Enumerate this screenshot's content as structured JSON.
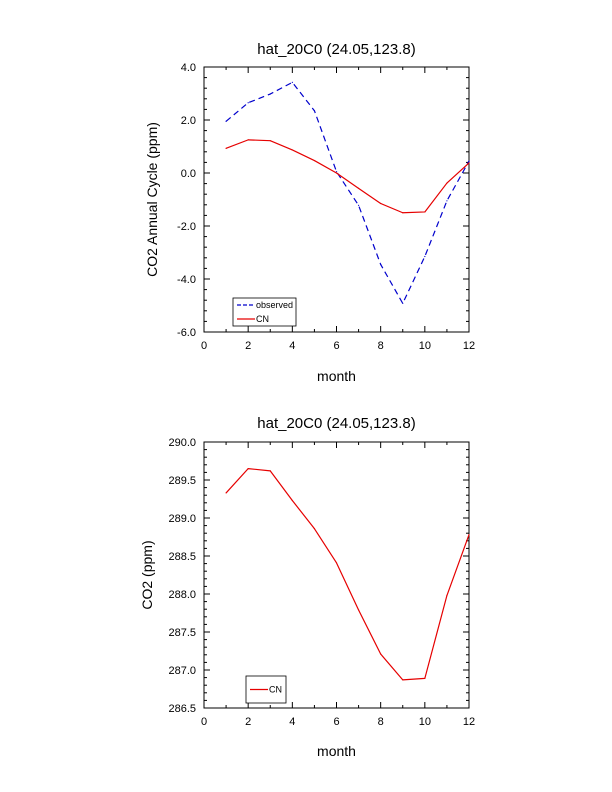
{
  "chart_data": [
    {
      "type": "line",
      "title": "hat_20C0 (24.05,123.8)",
      "xlabel": "month",
      "ylabel": "CO2 Annual Cycle (ppm)",
      "xlim": [
        0,
        12
      ],
      "ylim": [
        -6.0,
        4.0
      ],
      "xticks": [
        0,
        2,
        4,
        6,
        8,
        10,
        12
      ],
      "yticks": [
        -6.0,
        -4.0,
        -2.0,
        0.0,
        2.0,
        4.0
      ],
      "ytick_labels": [
        "-6.0",
        "-4.0",
        "-2.0",
        "0.0",
        "2.0",
        "4.0"
      ],
      "grid": false,
      "legend_position": "bottom-left",
      "x": [
        1,
        2,
        3,
        4,
        5,
        6,
        7,
        8,
        9,
        10,
        11,
        12
      ],
      "series": [
        {
          "name": "observed",
          "color": "#0000cc",
          "dash": "dashed",
          "values": [
            1.95,
            2.65,
            2.98,
            3.42,
            2.35,
            0.05,
            -1.22,
            -3.45,
            -4.92,
            -3.15,
            -1.05,
            0.45
          ]
        },
        {
          "name": "CN",
          "color": "#e60000",
          "dash": "solid",
          "values": [
            0.93,
            1.25,
            1.22,
            0.87,
            0.47,
            0.0,
            -0.58,
            -1.15,
            -1.5,
            -1.47,
            -0.38,
            0.38
          ]
        }
      ]
    },
    {
      "type": "line",
      "title": "hat_20C0 (24.05,123.8)",
      "xlabel": "month",
      "ylabel": "CO2 (ppm)",
      "xlim": [
        0,
        12
      ],
      "ylim": [
        286.5,
        290.0
      ],
      "xticks": [
        0,
        2,
        4,
        6,
        8,
        10,
        12
      ],
      "yticks": [
        286.5,
        287.0,
        287.5,
        288.0,
        288.5,
        289.0,
        289.5,
        290.0
      ],
      "ytick_labels": [
        "286.5",
        "287.0",
        "287.5",
        "288.0",
        "288.5",
        "289.0",
        "289.5",
        "290.0"
      ],
      "grid": false,
      "legend_position": "bottom-left",
      "x": [
        1,
        2,
        3,
        4,
        5,
        6,
        7,
        8,
        9,
        10,
        11,
        12
      ],
      "series": [
        {
          "name": "CN",
          "color": "#e60000",
          "dash": "solid",
          "values": [
            289.33,
            289.65,
            289.62,
            289.23,
            288.86,
            288.41,
            287.79,
            287.21,
            286.87,
            286.89,
            287.98,
            288.78
          ]
        }
      ]
    }
  ]
}
